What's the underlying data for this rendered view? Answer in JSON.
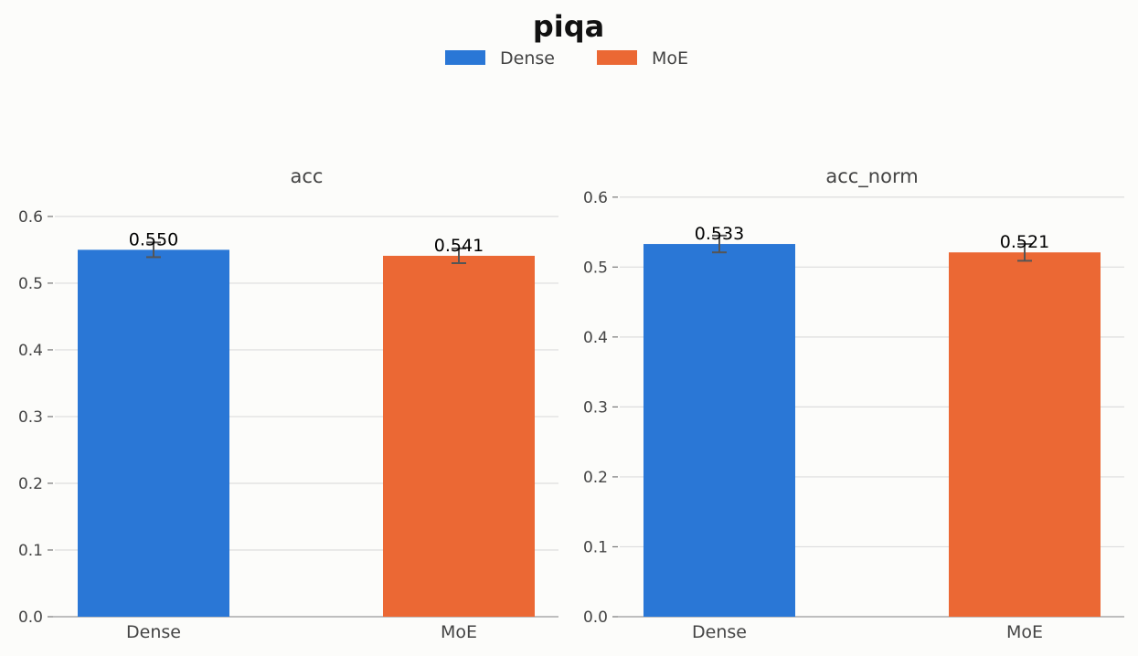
{
  "chart_data": [
    {
      "type": "bar",
      "title": "acc",
      "categories": [
        "Dense",
        "MoE"
      ],
      "values": [
        0.55,
        0.541
      ],
      "value_labels": [
        "0.550",
        "0.541"
      ],
      "errors": [
        0.011,
        0.011
      ],
      "colors": [
        "#2a77d6",
        "#eb6834"
      ],
      "ylim": [
        0,
        0.63
      ],
      "yticks": [
        "0.0",
        "0.1",
        "0.2",
        "0.3",
        "0.4",
        "0.5",
        "0.6"
      ],
      "grid": true
    },
    {
      "type": "bar",
      "title": "acc_norm",
      "categories": [
        "Dense",
        "MoE"
      ],
      "values": [
        0.533,
        0.521
      ],
      "value_labels": [
        "0.533",
        "0.521"
      ],
      "errors": [
        0.012,
        0.012
      ],
      "colors": [
        "#2a77d6",
        "#eb6834"
      ],
      "ylim": [
        0,
        0.601
      ],
      "yticks": [
        "0.0",
        "0.1",
        "0.2",
        "0.3",
        "0.4",
        "0.5",
        "0.6"
      ],
      "grid": true
    }
  ],
  "figure": {
    "title": "piqa",
    "legend": [
      {
        "label": "Dense",
        "color": "#2a77d6"
      },
      {
        "label": "MoE",
        "color": "#eb6834"
      }
    ],
    "legend_placement": "top-center"
  }
}
